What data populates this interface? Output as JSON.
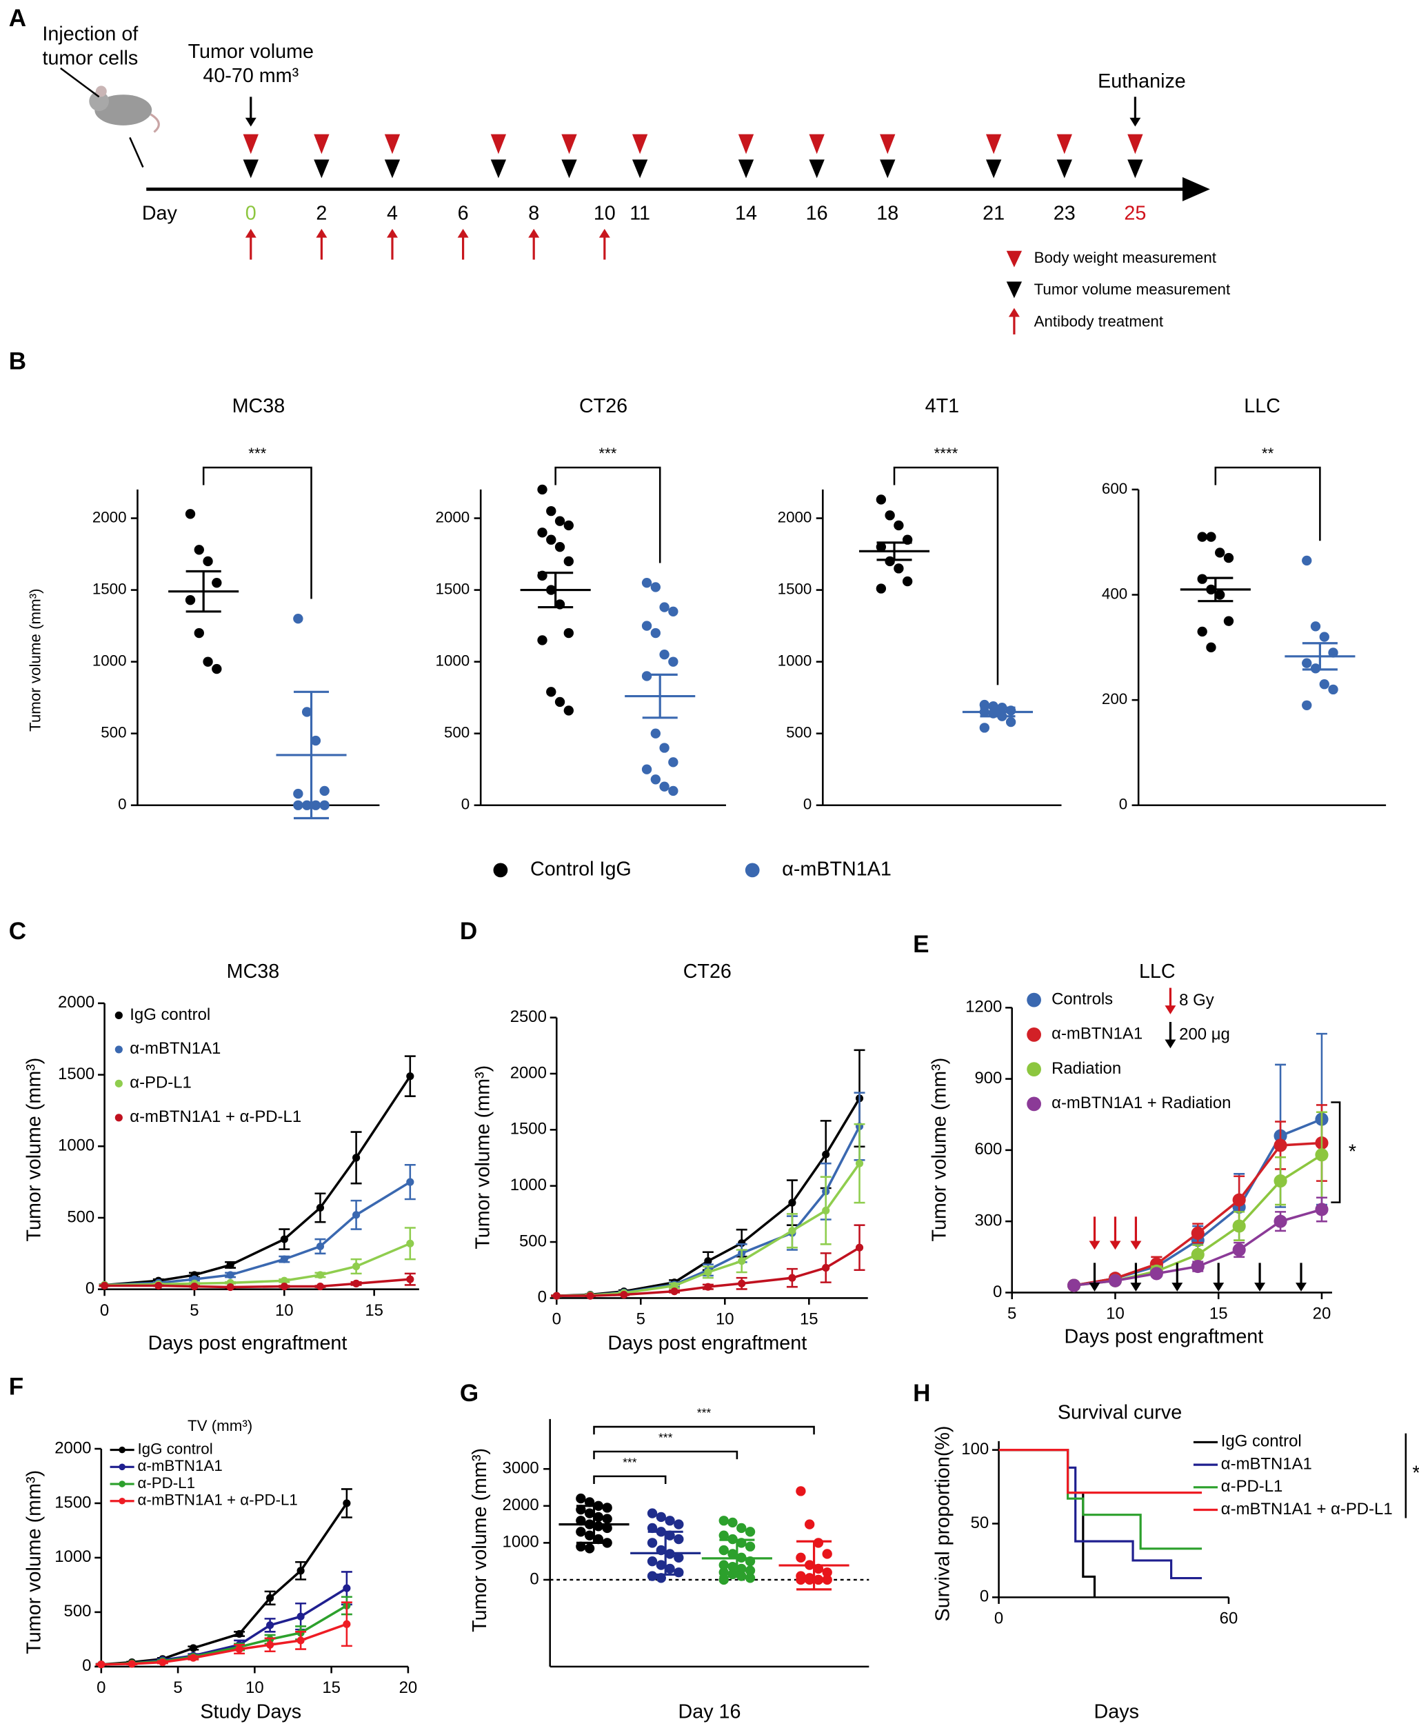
{
  "chart_data": [
    {
      "type": "timeline",
      "panel": "A",
      "injection_label": [
        "Injection of",
        "tumor cells"
      ],
      "start_label": [
        "Tumor volume",
        "40-70 mm³"
      ],
      "end_label": "Euthanize",
      "axis_label": "Day",
      "xlim": [
        0,
        25
      ],
      "days": [
        0,
        2,
        4,
        6,
        8,
        10,
        11,
        14,
        16,
        18,
        21,
        23,
        25
      ],
      "day_colors": [
        "#8dc63f",
        "#000000",
        "#000000",
        "#000000",
        "#000000",
        "#000000",
        "#000000",
        "#000000",
        "#000000",
        "#000000",
        "#000000",
        "#000000",
        "#d0121b"
      ],
      "body_weight_days": [
        0,
        2,
        4,
        7,
        9,
        11,
        14,
        16,
        18,
        21,
        23,
        25
      ],
      "tumor_volume_days": [
        0,
        2,
        4,
        7,
        9,
        11,
        14,
        16,
        18,
        21,
        23,
        25
      ],
      "antibody_days": [
        0,
        2,
        4,
        6,
        8,
        10
      ],
      "legend": [
        "Body weight measurement",
        "Tumor volume measurement",
        "Antibody treatment"
      ],
      "colors": {
        "body_weight": "#c8161d",
        "tumor_volume": "#000000",
        "antibody": "#c8161d"
      }
    },
    {
      "type": "dotplot",
      "panel": "B",
      "ylabel": "Tumor volume (mm³)",
      "series": [
        {
          "name": "Control IgG",
          "color": "#000000"
        },
        {
          "name": "α-mBTN1A1",
          "color": "#3a68b0"
        }
      ],
      "subplots": [
        {
          "title": "MC38",
          "ylim": [
            0,
            2200
          ],
          "yticks": [
            0,
            500,
            1000,
            1500,
            2000
          ],
          "significance": "***",
          "groups": [
            {
              "values": [
                2030,
                1780,
                1700,
                1550,
                1430,
                1200,
                1000,
                950
              ],
              "mean": 1490,
              "error": 140
            },
            {
              "values": [
                1300,
                650,
                450,
                100,
                80,
                0,
                0,
                0,
                0
              ],
              "mean": 350,
              "error": 440
            }
          ]
        },
        {
          "title": "CT26",
          "ylim": [
            0,
            2200
          ],
          "yticks": [
            0,
            500,
            1000,
            1500,
            2000
          ],
          "significance": "***",
          "groups": [
            {
              "values": [
                2200,
                2050,
                1980,
                1950,
                1900,
                1850,
                1800,
                1700,
                1600,
                1500,
                1400,
                1200,
                1150,
                790,
                720,
                660
              ],
              "mean": 1500,
              "error": 120
            },
            {
              "values": [
                1550,
                1520,
                1380,
                1350,
                1250,
                1200,
                1050,
                1000,
                900,
                500,
                400,
                300,
                250,
                180,
                130,
                100
              ],
              "mean": 760,
              "error": 150
            }
          ]
        },
        {
          "title": "4T1",
          "ylim": [
            0,
            2200
          ],
          "yticks": [
            0,
            500,
            1000,
            1500,
            2000
          ],
          "significance": "****",
          "groups": [
            {
              "values": [
                2130,
                2020,
                1950,
                1850,
                1800,
                1700,
                1650,
                1560,
                1510
              ],
              "mean": 1770,
              "error": 60
            },
            {
              "values": [
                700,
                690,
                680,
                660,
                650,
                640,
                620,
                580,
                540
              ],
              "mean": 650,
              "error": 30
            }
          ]
        },
        {
          "title": "LLC",
          "ylim": [
            0,
            600
          ],
          "yticks": [
            0,
            200,
            400,
            600
          ],
          "significance": "**",
          "groups": [
            {
              "values": [
                510,
                510,
                480,
                470,
                430,
                410,
                400,
                350,
                330,
                300
              ],
              "mean": 410,
              "error": 22
            },
            {
              "values": [
                465,
                340,
                320,
                290,
                270,
                260,
                230,
                220,
                190
              ],
              "mean": 283,
              "error": 25
            }
          ]
        }
      ]
    },
    {
      "type": "line",
      "panel": "C",
      "title": "MC38",
      "xlabel": "Days post engraftment",
      "ylabel": "Tumor volume (mm³)",
      "xlim": [
        0,
        17.5
      ],
      "xticks": [
        0,
        5,
        10,
        15
      ],
      "ylim": [
        0,
        2000
      ],
      "yticks": [
        0,
        500,
        1000,
        1500,
        2000
      ],
      "x": [
        0,
        3,
        5,
        7,
        10,
        12,
        14,
        17
      ],
      "series": [
        {
          "name": "IgG control",
          "color": "#000000",
          "values": [
            30,
            60,
            100,
            170,
            350,
            570,
            920,
            1490
          ],
          "errors": [
            5,
            10,
            15,
            20,
            70,
            100,
            180,
            140
          ]
        },
        {
          "name": "α-mBTN1A1",
          "color": "#3a68b0",
          "values": [
            30,
            45,
            70,
            100,
            210,
            300,
            520,
            750
          ],
          "errors": [
            5,
            5,
            10,
            15,
            20,
            50,
            100,
            120
          ]
        },
        {
          "name": "α-PD-L1",
          "color": "#8fcd4e",
          "values": [
            30,
            35,
            40,
            45,
            60,
            100,
            160,
            320
          ],
          "errors": [
            3,
            5,
            5,
            5,
            10,
            15,
            50,
            110
          ]
        },
        {
          "name": "α-mBTN1A1 + α-PD-L1",
          "color": "#c0111f",
          "values": [
            25,
            25,
            20,
            15,
            20,
            20,
            40,
            70
          ],
          "errors": [
            3,
            3,
            3,
            3,
            5,
            5,
            10,
            40
          ]
        }
      ]
    },
    {
      "type": "line",
      "panel": "D",
      "title": "CT26",
      "xlabel": "Days post engraftment",
      "ylabel": "Tumor volume (mm³)",
      "xlim": [
        0,
        18.5
      ],
      "xticks": [
        0,
        5,
        10,
        15
      ],
      "ylim": [
        0,
        2500
      ],
      "yticks": [
        0,
        500,
        1000,
        1500,
        2000,
        2500
      ],
      "x": [
        0,
        2,
        4,
        7,
        9,
        11,
        14,
        16,
        18
      ],
      "series": [
        {
          "color": "#000000",
          "values": [
            20,
            30,
            60,
            140,
            330,
            490,
            850,
            1280,
            1780
          ],
          "errors": [
            5,
            5,
            10,
            20,
            80,
            120,
            200,
            300,
            430
          ]
        },
        {
          "color": "#3a68b0",
          "values": [
            20,
            25,
            50,
            120,
            250,
            400,
            580,
            950,
            1530
          ],
          "errors": [
            5,
            5,
            10,
            20,
            50,
            80,
            150,
            250,
            300
          ]
        },
        {
          "color": "#8fcd4e",
          "values": [
            20,
            25,
            45,
            110,
            230,
            330,
            600,
            780,
            1200
          ],
          "errors": [
            5,
            5,
            10,
            20,
            50,
            100,
            150,
            300,
            350
          ]
        },
        {
          "color": "#c0111f",
          "values": [
            20,
            20,
            30,
            60,
            100,
            130,
            180,
            270,
            450
          ],
          "errors": [
            3,
            3,
            5,
            10,
            20,
            50,
            80,
            130,
            200
          ]
        }
      ]
    },
    {
      "type": "line",
      "panel": "E",
      "title": "LLC",
      "xlabel": "Days post engraftment",
      "ylabel": "Tumor volume (mm³)",
      "xlim": [
        5,
        20.5
      ],
      "xticks": [
        5,
        10,
        15,
        20
      ],
      "ylim": [
        0,
        1200
      ],
      "yticks": [
        0,
        300,
        600,
        900,
        1200
      ],
      "x": [
        8,
        10,
        12,
        14,
        16,
        18,
        20
      ],
      "significance": "*",
      "series": [
        {
          "name": "Controls",
          "color": "#3a68b0",
          "values": [
            30,
            60,
            110,
            220,
            360,
            660,
            730
          ],
          "errors": [
            5,
            15,
            40,
            60,
            140,
            300,
            360
          ]
        },
        {
          "name": "α-mBTN1A1",
          "color": "#d22027",
          "values": [
            30,
            60,
            120,
            250,
            390,
            620,
            630
          ],
          "errors": [
            5,
            10,
            30,
            40,
            100,
            100,
            160
          ]
        },
        {
          "name": "Radiation",
          "color": "#8cc63f",
          "values": [
            30,
            50,
            90,
            160,
            280,
            470,
            580
          ],
          "errors": [
            5,
            10,
            20,
            40,
            60,
            100,
            180
          ]
        },
        {
          "name": "α-mBTN1A1 + Radiation",
          "color": "#8b3a97",
          "values": [
            30,
            50,
            80,
            110,
            180,
            300,
            350
          ],
          "errors": [
            5,
            5,
            10,
            20,
            30,
            40,
            50
          ]
        }
      ],
      "annotations": [
        {
          "label": "8 Gy",
          "color": "#d0121b",
          "days": [
            9,
            10,
            11
          ]
        },
        {
          "label": "200 μg",
          "color": "#000000",
          "days": [
            9,
            11,
            13,
            15,
            17,
            19
          ]
        }
      ]
    },
    {
      "type": "line",
      "panel": "F",
      "title": "TV (mm³)",
      "xlabel": "Study Days",
      "ylabel": "Tumor volume (mm³)",
      "xlim": [
        0,
        20
      ],
      "xticks": [
        0,
        5,
        10,
        15,
        20
      ],
      "ylim": [
        0,
        2000
      ],
      "yticks": [
        0,
        500,
        1000,
        1500,
        2000
      ],
      "x": [
        0,
        2,
        4,
        6,
        9,
        11,
        13,
        16
      ],
      "series": [
        {
          "name": "IgG control",
          "color": "#000000",
          "values": [
            20,
            40,
            70,
            170,
            300,
            630,
            880,
            1500
          ],
          "errors": [
            5,
            5,
            10,
            15,
            20,
            60,
            80,
            130
          ]
        },
        {
          "name": "α-mBTN1A1",
          "color": "#1f1f8f",
          "values": [
            20,
            30,
            60,
            100,
            200,
            380,
            460,
            720
          ],
          "errors": [
            3,
            5,
            10,
            15,
            40,
            60,
            120,
            150
          ]
        },
        {
          "name": "α-PD-L1",
          "color": "#2ca02c",
          "values": [
            20,
            30,
            50,
            90,
            180,
            250,
            310,
            560
          ],
          "errors": [
            3,
            5,
            10,
            15,
            30,
            40,
            60,
            80
          ]
        },
        {
          "name": "α-mBTN1A1 + α-PD-L1",
          "color": "#ee1c24",
          "values": [
            20,
            25,
            40,
            80,
            160,
            200,
            240,
            390
          ],
          "errors": [
            3,
            5,
            10,
            15,
            40,
            60,
            80,
            200
          ]
        }
      ]
    },
    {
      "type": "dotplot",
      "panel": "G",
      "ylabel": "Tumor volume (mm³)",
      "xlabel": "Day 16",
      "zero_line": true,
      "subplots": [
        {
          "ylim": [
            -2350,
            4350
          ],
          "yticks": [
            0,
            1000,
            2000,
            3000
          ],
          "groups": [
            {
              "color": "#000000",
              "values": [
                2200,
                2100,
                2000,
                1950,
                1900,
                1800,
                1700,
                1650,
                1600,
                1500,
                1450,
                1400,
                1300,
                1200,
                1100,
                1000,
                900,
                850
              ],
              "mean": 1500,
              "error": 500
            },
            {
              "color": "#1f2d8c",
              "values": [
                1800,
                1700,
                1600,
                1500,
                1400,
                1300,
                1200,
                1100,
                1000,
                800,
                700,
                600,
                500,
                400,
                300,
                200,
                100,
                50
              ],
              "mean": 720,
              "error": 580
            },
            {
              "color": "#2ca02c",
              "values": [
                1600,
                1550,
                1400,
                1300,
                1200,
                1100,
                1000,
                900,
                800,
                700,
                600,
                500,
                400,
                350,
                300,
                250,
                200,
                150,
                100,
                50,
                0
              ],
              "mean": 580,
              "error": 500
            },
            {
              "color": "#e8151b",
              "values": [
                2400,
                1500,
                1000,
                700,
                600,
                400,
                300,
                200,
                100,
                50,
                0,
                0,
                0,
                0,
                0
              ],
              "mean": 390,
              "error": 650
            }
          ],
          "comparisons": [
            {
              "from": 0,
              "to": 3,
              "label": "***"
            },
            {
              "from": 0,
              "to": 2,
              "label": "***"
            },
            {
              "from": 0,
              "to": 1,
              "label": "***"
            }
          ]
        }
      ]
    },
    {
      "type": "survival",
      "panel": "H",
      "title": "Survival curve",
      "xlabel": "Days",
      "ylabel": "Survival proportion(%)",
      "xlim": [
        0,
        60
      ],
      "xticks": [
        0,
        60
      ],
      "ylim": [
        0,
        106
      ],
      "yticks": [
        0,
        50,
        100
      ],
      "significance": "*",
      "series": [
        {
          "name": "IgG control",
          "color": "#000000",
          "x": [
            0,
            18,
            22,
            25
          ],
          "values": [
            100,
            71,
            14,
            0
          ]
        },
        {
          "name": "α-mBTN1A1",
          "color": "#1f1f8f",
          "x": [
            0,
            18,
            20,
            35,
            45,
            53
          ],
          "values": [
            100,
            88,
            38,
            25,
            13,
            13
          ]
        },
        {
          "name": "α-PD-L1",
          "color": "#2ca02c",
          "x": [
            0,
            18,
            22,
            37,
            53
          ],
          "values": [
            100,
            67,
            56,
            33,
            33
          ]
        },
        {
          "name": "α-mBTN1A1 + α-PD-L1",
          "color": "#ee1c24",
          "x": [
            0,
            18,
            53
          ],
          "values": [
            100,
            71,
            71
          ]
        }
      ]
    }
  ]
}
